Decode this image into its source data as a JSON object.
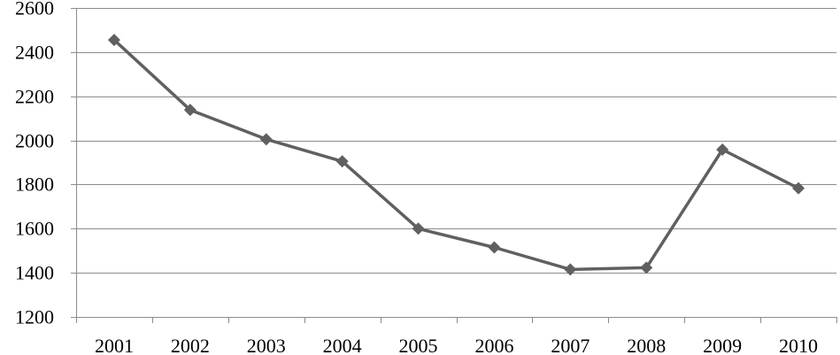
{
  "chart_data": {
    "type": "line",
    "title": "",
    "xlabel": "",
    "ylabel": "",
    "categories": [
      "2001",
      "2002",
      "2003",
      "2004",
      "2005",
      "2006",
      "2007",
      "2008",
      "2009",
      "2010"
    ],
    "series": [
      {
        "values": [
          2455,
          2138,
          2005,
          1905,
          1600,
          1515,
          1415,
          1423,
          1958,
          1783
        ]
      }
    ],
    "ylim": [
      1200,
      2600
    ],
    "yticks": [
      1200,
      1400,
      1600,
      1800,
      2000,
      2200,
      2400,
      2600
    ],
    "grid": true,
    "legend": "none",
    "line_color": "#606060",
    "marker": "diamond"
  }
}
